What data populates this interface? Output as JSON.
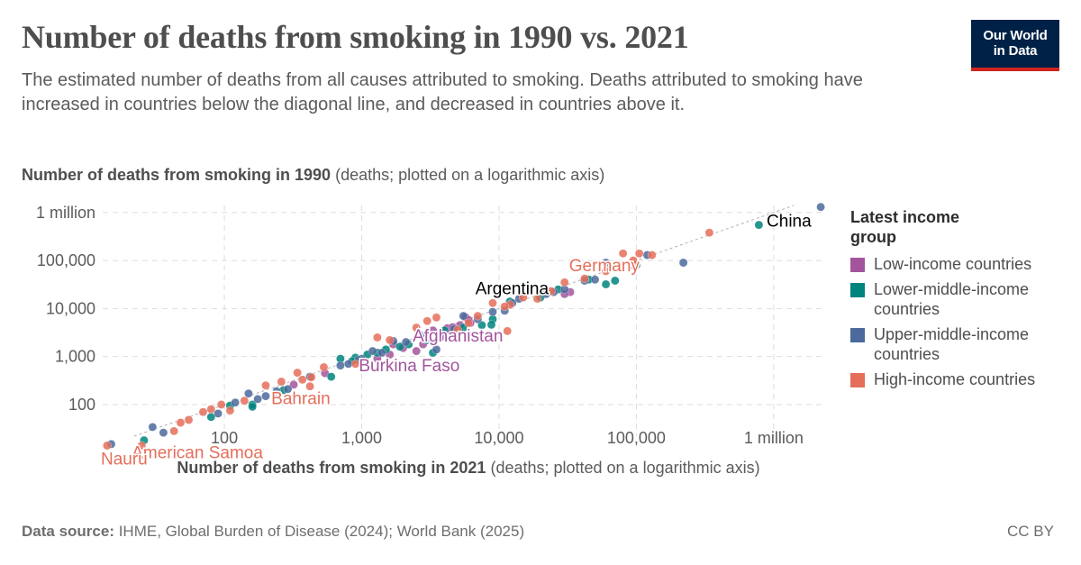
{
  "header": {
    "title": "Number of deaths from smoking in 1990 vs. 2021",
    "subtitle": "The estimated number of deaths from all causes attributed to smoking. Deaths attributed to smoking have increased in countries below the diagonal line, and decreased in countries above it.",
    "logo_line1": "Our World",
    "logo_line2": "in Data"
  },
  "axes": {
    "y_title_bold": "Number of deaths from smoking in 1990",
    "y_title_rest": " (deaths; plotted on a logarithmic axis)",
    "x_title_bold": "Number of deaths from smoking in 2021",
    "x_title_rest": " (deaths; plotted on a logarithmic axis)"
  },
  "legend": {
    "title": "Latest income group",
    "items": [
      {
        "label": "Low-income countries",
        "color": "#a2559c"
      },
      {
        "label": "Lower-middle-income countries",
        "color": "#00847e"
      },
      {
        "label": "Upper-middle-income countries",
        "color": "#4c6a9c"
      },
      {
        "label": "High-income countries",
        "color": "#e56e5a"
      }
    ]
  },
  "footer": {
    "source_label": "Data source:",
    "source_text": " IHME, Global Burden of Disease (2024); World Bank (2025)",
    "license": "CC BY"
  },
  "chart_data": {
    "type": "scatter",
    "x_scale": "log",
    "y_scale": "log",
    "xlim": [
      13,
      2300000
    ],
    "ylim": [
      22,
      1400000
    ],
    "x_ticks": [
      {
        "value": 100,
        "label": "100"
      },
      {
        "value": 1000,
        "label": "1,000"
      },
      {
        "value": 10000,
        "label": "10,000"
      },
      {
        "value": 100000,
        "label": "100,000"
      },
      {
        "value": 1000000,
        "label": "1 million"
      }
    ],
    "y_ticks": [
      {
        "value": 100,
        "label": "100"
      },
      {
        "value": 1000,
        "label": "1,000"
      },
      {
        "value": 10000,
        "label": "10,000"
      },
      {
        "value": 100000,
        "label": "100,000"
      },
      {
        "value": 1000000,
        "label": "1 million"
      }
    ],
    "grid": true,
    "legend_position": "right",
    "diagonal": "x = y reference line",
    "labels": [
      {
        "name": "China",
        "group": "upper-middle",
        "x": 2200000,
        "y": 1300000
      },
      {
        "name": "Germany",
        "group": "high",
        "x": 130000,
        "y": 130000
      },
      {
        "name": "Argentina",
        "group": "upper-middle",
        "x": 40000,
        "y": 40000
      },
      {
        "name": "Afghanistan",
        "group": "low",
        "x": 5000,
        "y": 4500
      },
      {
        "name": "Burkina Faso",
        "group": "low",
        "x": 1500,
        "y": 1400
      },
      {
        "name": "Bahrain",
        "group": "high",
        "x": 390,
        "y": 370
      },
      {
        "name": "American Samoa",
        "group": "high",
        "x": 43,
        "y": 28
      },
      {
        "name": "Nauru",
        "group": "high",
        "x": 13,
        "y": 14
      }
    ],
    "series": [
      {
        "name": "Low-income countries",
        "group": "low",
        "points": [
          [
            3300,
            3500
          ],
          [
            4200,
            3900
          ],
          [
            5200,
            4500
          ],
          [
            6200,
            5000
          ],
          [
            1700,
            1800
          ],
          [
            2500,
            1300
          ],
          [
            2000,
            1500
          ],
          [
            1600,
            1100
          ],
          [
            1300,
            900
          ],
          [
            3800,
            2900
          ],
          [
            320,
            260
          ],
          [
            540,
            450
          ],
          [
            4400,
            3300
          ],
          [
            5700,
            6600
          ],
          [
            33000,
            22000
          ],
          [
            30000,
            20000
          ],
          [
            2800,
            1800
          ],
          [
            4600,
            4100
          ],
          [
            3700,
            2400
          ],
          [
            6000,
            5800
          ]
        ]
      },
      {
        "name": "Lower-middle-income countries",
        "group": "middle-low",
        "points": [
          [
            780000,
            550000
          ],
          [
            60000,
            32000
          ],
          [
            70000,
            38000
          ],
          [
            45000,
            40000
          ],
          [
            12000,
            14000
          ],
          [
            9000,
            6000
          ],
          [
            7500,
            4500
          ],
          [
            5500,
            4000
          ],
          [
            4000,
            3500
          ],
          [
            3000,
            2200
          ],
          [
            2600,
            3000
          ],
          [
            1900,
            1600
          ],
          [
            1500,
            1400
          ],
          [
            1300,
            1200
          ],
          [
            1100,
            1100
          ],
          [
            900,
            950
          ],
          [
            850,
            800
          ],
          [
            600,
            380
          ],
          [
            310,
            130
          ],
          [
            270,
            200
          ],
          [
            160,
            100
          ],
          [
            160,
            90
          ],
          [
            110,
            95
          ],
          [
            80,
            55
          ],
          [
            26,
            18
          ],
          [
            700,
            900
          ],
          [
            2200,
            1800
          ],
          [
            3300,
            1200
          ],
          [
            8800,
            4600
          ],
          [
            20000,
            17000
          ],
          [
            27000,
            25000
          ],
          [
            100000,
            80000
          ]
        ]
      },
      {
        "name": "Upper-middle-income countries",
        "group": "middle-high",
        "points": [
          [
            2200000,
            1300000
          ],
          [
            220000,
            90000
          ],
          [
            120000,
            130000
          ],
          [
            95000,
            80000
          ],
          [
            60000,
            90000
          ],
          [
            50000,
            40000
          ],
          [
            42000,
            38000
          ],
          [
            30000,
            25000
          ],
          [
            25000,
            22000
          ],
          [
            22000,
            20000
          ],
          [
            14000,
            16000
          ],
          [
            12500,
            13000
          ],
          [
            11000,
            9000
          ],
          [
            9000,
            8500
          ],
          [
            7000,
            6000
          ],
          [
            5500,
            7000
          ],
          [
            4700,
            3700
          ],
          [
            4200,
            2800
          ],
          [
            3500,
            1400
          ],
          [
            2800,
            2700
          ],
          [
            2100,
            2000
          ],
          [
            1700,
            2100
          ],
          [
            1400,
            1200
          ],
          [
            1200,
            1300
          ],
          [
            1000,
            900
          ],
          [
            950,
            850
          ],
          [
            800,
            700
          ],
          [
            700,
            650
          ],
          [
            420,
            380
          ],
          [
            290,
            210
          ],
          [
            240,
            190
          ],
          [
            200,
            150
          ],
          [
            175,
            130
          ],
          [
            150,
            170
          ],
          [
            120,
            110
          ],
          [
            90,
            65
          ],
          [
            36,
            26
          ],
          [
            30,
            34
          ],
          [
            15,
            15
          ]
        ]
      },
      {
        "name": "High-income countries",
        "group": "high",
        "points": [
          [
            340000,
            380000
          ],
          [
            130000,
            130000
          ],
          [
            105000,
            140000
          ],
          [
            95000,
            100000
          ],
          [
            80000,
            140000
          ],
          [
            60000,
            60000
          ],
          [
            42000,
            42000
          ],
          [
            30000,
            35000
          ],
          [
            24000,
            23000
          ],
          [
            19000,
            16000
          ],
          [
            15000,
            17000
          ],
          [
            12000,
            12000
          ],
          [
            11000,
            11000
          ],
          [
            9000,
            13000
          ],
          [
            7000,
            7000
          ],
          [
            6000,
            5000
          ],
          [
            5000,
            3600
          ],
          [
            3500,
            6500
          ],
          [
            3000,
            5500
          ],
          [
            2500,
            4000
          ],
          [
            1600,
            2200
          ],
          [
            1300,
            2500
          ],
          [
            900,
            700
          ],
          [
            530,
            600
          ],
          [
            430,
            370
          ],
          [
            420,
            240
          ],
          [
            370,
            330
          ],
          [
            340,
            460
          ],
          [
            310,
            120
          ],
          [
            260,
            300
          ],
          [
            200,
            250
          ],
          [
            140,
            120
          ],
          [
            110,
            75
          ],
          [
            95,
            100
          ],
          [
            80,
            80
          ],
          [
            70,
            70
          ],
          [
            55,
            48
          ],
          [
            48,
            42
          ],
          [
            43,
            28
          ],
          [
            25,
            14
          ],
          [
            14,
            14
          ],
          [
            11500,
            3400
          ]
        ]
      }
    ]
  }
}
